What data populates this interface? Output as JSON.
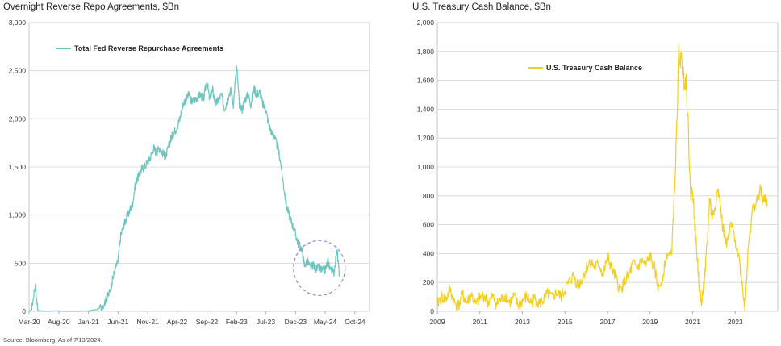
{
  "source": "Source: Bloomberg. As of 7/13/2024.",
  "chart_data": [
    {
      "type": "line",
      "title": "Overnight Reverse Repo Agreements, $Bn",
      "xlabel": "",
      "ylabel": "",
      "ylim": [
        0,
        3000
      ],
      "y_ticks": [
        0,
        500,
        1000,
        1500,
        2000,
        2500,
        3000
      ],
      "y_tick_labels": [
        "0",
        "500",
        "1,000",
        "1,500",
        "2,000",
        "2,500",
        "3,000"
      ],
      "x_range": [
        "2020-03-01",
        "2024-12-15"
      ],
      "x_tick_labels": [
        "Mar-20",
        "Aug-20",
        "Jan-21",
        "Jun-21",
        "Nov-21",
        "Apr-22",
        "Sep-22",
        "Feb-23",
        "Jul-23",
        "Dec-23",
        "May-24",
        "Oct-24"
      ],
      "x_tick_dates": [
        "2020-03-01",
        "2020-08-01",
        "2021-01-01",
        "2021-06-01",
        "2021-11-01",
        "2022-04-01",
        "2022-09-01",
        "2023-02-01",
        "2023-07-01",
        "2023-12-01",
        "2024-05-01",
        "2024-10-01"
      ],
      "grid": true,
      "legend_position": "top-left",
      "color": "#6cc5be",
      "highlight_circle_color": "#8888dd",
      "series": [
        {
          "name": "Total Fed Reverse Repurchase Agreements",
          "x": [
            "2020-03-01",
            "2020-03-15",
            "2020-04-01",
            "2020-04-15",
            "2020-05-15",
            "2020-07-01",
            "2020-09-01",
            "2020-11-01",
            "2021-01-01",
            "2021-02-15",
            "2021-03-15",
            "2021-04-01",
            "2021-04-15",
            "2021-05-01",
            "2021-05-15",
            "2021-06-01",
            "2021-06-15",
            "2021-07-01",
            "2021-07-15",
            "2021-08-01",
            "2021-08-15",
            "2021-09-01",
            "2021-09-15",
            "2021-10-01",
            "2021-10-15",
            "2021-11-01",
            "2021-11-15",
            "2021-12-01",
            "2021-12-15",
            "2022-01-01",
            "2022-01-15",
            "2022-02-01",
            "2022-02-15",
            "2022-03-01",
            "2022-03-15",
            "2022-04-01",
            "2022-04-15",
            "2022-05-01",
            "2022-05-15",
            "2022-06-01",
            "2022-06-15",
            "2022-07-01",
            "2022-07-15",
            "2022-08-01",
            "2022-08-15",
            "2022-09-01",
            "2022-09-15",
            "2022-10-01",
            "2022-10-15",
            "2022-11-01",
            "2022-11-15",
            "2022-12-01",
            "2022-12-15",
            "2023-01-01",
            "2023-01-15",
            "2023-02-01",
            "2023-02-15",
            "2023-03-01",
            "2023-03-15",
            "2023-04-01",
            "2023-04-15",
            "2023-05-01",
            "2023-05-15",
            "2023-06-01",
            "2023-06-15",
            "2023-07-01",
            "2023-07-15",
            "2023-08-01",
            "2023-08-15",
            "2023-09-01",
            "2023-09-15",
            "2023-10-01",
            "2023-10-15",
            "2023-11-01",
            "2023-11-15",
            "2023-12-01",
            "2023-12-15",
            "2024-01-01",
            "2024-01-15",
            "2024-02-01",
            "2024-02-15",
            "2024-03-01",
            "2024-03-15",
            "2024-04-01",
            "2024-04-15",
            "2024-05-01",
            "2024-05-15",
            "2024-06-01",
            "2024-06-15",
            "2024-06-30",
            "2024-07-13"
          ],
          "values": [
            0,
            20,
            280,
            10,
            0,
            5,
            0,
            0,
            5,
            20,
            60,
            120,
            180,
            300,
            420,
            520,
            780,
            900,
            970,
            1050,
            1120,
            1350,
            1400,
            1480,
            1500,
            1550,
            1600,
            1700,
            1650,
            1700,
            1650,
            1600,
            1700,
            1800,
            1850,
            1920,
            2000,
            2150,
            2200,
            2250,
            2180,
            2200,
            2230,
            2250,
            2200,
            2400,
            2200,
            2300,
            2150,
            2200,
            2250,
            2100,
            2200,
            2300,
            2150,
            2550,
            2150,
            2100,
            2200,
            2250,
            2150,
            2320,
            2250,
            2280,
            2150,
            2100,
            1950,
            1850,
            1800,
            1700,
            1550,
            1300,
            1100,
            980,
            900,
            800,
            700,
            650,
            480,
            520,
            450,
            480,
            440,
            450,
            420,
            430,
            520,
            430,
            400,
            650,
            380
          ]
        }
      ]
    },
    {
      "type": "line",
      "title": "U.S. Treasury Cash Balance, $Bn",
      "xlabel": "",
      "ylabel": "",
      "ylim": [
        0,
        2000
      ],
      "y_ticks": [
        0,
        200,
        400,
        600,
        800,
        1000,
        1200,
        1400,
        1600,
        1800,
        2000
      ],
      "y_tick_labels": [
        "0",
        "200",
        "400",
        "600",
        "800",
        "1,000",
        "1,200",
        "1,400",
        "1,600",
        "1,800",
        "2,000"
      ],
      "x_range": [
        2009,
        2025
      ],
      "x_tick_labels": [
        "2009",
        "2011",
        "2013",
        "2015",
        "2017",
        "2019",
        "2021",
        "2023"
      ],
      "x_tick_values": [
        2009,
        2011,
        2013,
        2015,
        2017,
        2019,
        2021,
        2023
      ],
      "grid": true,
      "legend_position": "top-center",
      "color": "#f2cf1f",
      "series": [
        {
          "name": "U.S. Treasury Cash Balance",
          "x": [
            2009.0,
            2009.2,
            2009.4,
            2009.6,
            2009.8,
            2010.0,
            2010.2,
            2010.4,
            2010.6,
            2010.8,
            2011.0,
            2011.2,
            2011.4,
            2011.6,
            2011.8,
            2012.0,
            2012.2,
            2012.4,
            2012.6,
            2012.8,
            2013.0,
            2013.2,
            2013.4,
            2013.6,
            2013.8,
            2014.0,
            2014.2,
            2014.4,
            2014.6,
            2014.8,
            2015.0,
            2015.2,
            2015.4,
            2015.6,
            2015.8,
            2016.0,
            2016.2,
            2016.4,
            2016.6,
            2016.8,
            2017.0,
            2017.2,
            2017.4,
            2017.6,
            2017.8,
            2018.0,
            2018.2,
            2018.4,
            2018.6,
            2018.8,
            2019.0,
            2019.2,
            2019.4,
            2019.6,
            2019.8,
            2020.0,
            2020.2,
            2020.35,
            2020.5,
            2020.6,
            2020.7,
            2020.8,
            2020.9,
            2021.0,
            2021.1,
            2021.2,
            2021.3,
            2021.4,
            2021.5,
            2021.6,
            2021.7,
            2021.8,
            2021.9,
            2022.0,
            2022.2,
            2022.4,
            2022.6,
            2022.8,
            2023.0,
            2023.2,
            2023.4,
            2023.45,
            2023.6,
            2023.8,
            2024.0,
            2024.2,
            2024.3,
            2024.4,
            2024.5
          ],
          "values": [
            50,
            100,
            80,
            150,
            60,
            40,
            110,
            60,
            120,
            40,
            90,
            110,
            60,
            100,
            50,
            80,
            110,
            60,
            100,
            40,
            70,
            100,
            60,
            90,
            50,
            80,
            120,
            90,
            130,
            100,
            150,
            200,
            250,
            180,
            220,
            300,
            350,
            300,
            330,
            250,
            380,
            300,
            220,
            150,
            200,
            250,
            330,
            300,
            350,
            320,
            380,
            300,
            150,
            250,
            400,
            380,
            1000,
            1800,
            1700,
            1600,
            1600,
            1250,
            800,
            850,
            600,
            400,
            200,
            50,
            150,
            300,
            500,
            800,
            650,
            700,
            850,
            600,
            450,
            600,
            500,
            350,
            100,
            30,
            400,
            700,
            750,
            850,
            750,
            800,
            730
          ]
        }
      ]
    }
  ]
}
